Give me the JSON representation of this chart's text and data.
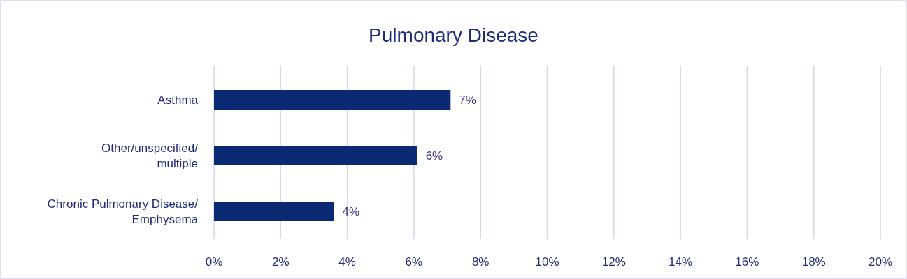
{
  "chart_data": {
    "type": "bar",
    "orientation": "horizontal",
    "title": "Pulmonary Disease",
    "categories": [
      "Asthma",
      "Other/unspecified/ multiple",
      "Chronic Pulmonary Disease/ Emphysema"
    ],
    "values": [
      7.1,
      6.1,
      3.6
    ],
    "value_labels": [
      "7%",
      "6%",
      "4%"
    ],
    "color": "#0a2a73",
    "xlim": [
      0,
      20
    ],
    "xticks": [
      {
        "value": 0,
        "label": "0%"
      },
      {
        "value": 2,
        "label": "2%"
      },
      {
        "value": 4,
        "label": "4%"
      },
      {
        "value": 6,
        "label": "6%"
      },
      {
        "value": 8,
        "label": "8%"
      },
      {
        "value": 10,
        "label": "10%"
      },
      {
        "value": 12,
        "label": "12%"
      },
      {
        "value": 14,
        "label": "14%"
      },
      {
        "value": 16,
        "label": "16%"
      },
      {
        "value": 18,
        "label": "18%"
      },
      {
        "value": 20,
        "label": "20%"
      }
    ],
    "grid": "x"
  }
}
